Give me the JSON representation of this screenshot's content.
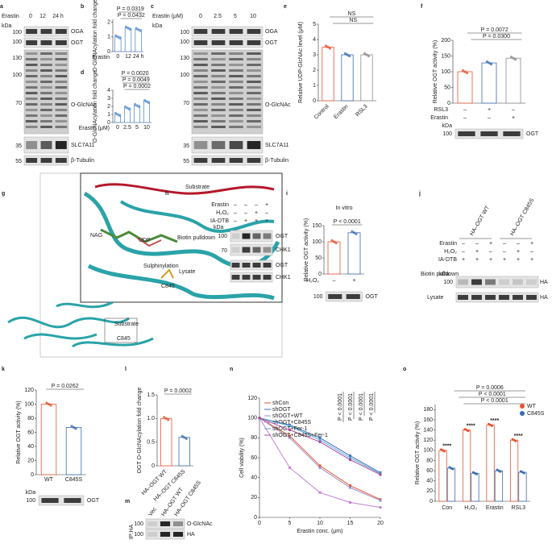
{
  "a": {
    "letter": "a",
    "treatment": "Erastin",
    "lanes": [
      "0",
      "12",
      "24 h"
    ],
    "kda": "kDa",
    "mw": [
      "100",
      "100",
      "130",
      "100",
      "70",
      "35",
      "55"
    ],
    "proteins": [
      "OGA",
      "OGT",
      "O-GlcNAc",
      "SLC7A11",
      "β-Tubulin"
    ]
  },
  "b": {
    "letter": "b",
    "type": "bar",
    "ylabel": "O-GlcNAcylation fold change",
    "xlabel": "Erastin",
    "categories": [
      "0",
      "12",
      "24 h"
    ],
    "values": [
      1,
      1.6,
      1.5
    ],
    "colors": [
      "#5b8fd6",
      "#5b8fd6",
      "#5b8fd6"
    ],
    "ylim": [
      0,
      2.2
    ],
    "yticks": [
      0,
      1,
      2
    ],
    "annotations": [
      "P = 0.0319",
      "P = 0.0432"
    ]
  },
  "c": {
    "letter": "c",
    "treatment": "Erastin (μM)",
    "lanes": [
      "0",
      "2.5",
      "5",
      "10"
    ],
    "kda": "kDa",
    "mw": [
      "100",
      "100",
      "130",
      "100",
      "70",
      "35",
      "55"
    ],
    "proteins": [
      "OGA",
      "OGT",
      "O-GlcNAc",
      "SLC7A11",
      "β-Tubulin"
    ]
  },
  "d": {
    "letter": "d",
    "type": "bar",
    "ylabel": "O-GlcNAcylation fold change",
    "xlabel": "Erastin (μM)",
    "categories": [
      "0",
      "2.5",
      "5",
      "10"
    ],
    "values": [
      1,
      1.8,
      2.1,
      2.6
    ],
    "colors": [
      "#5b8fd6",
      "#5b8fd6",
      "#5b8fd6",
      "#5b8fd6"
    ],
    "ylim": [
      0,
      4
    ],
    "yticks": [
      0,
      1,
      2,
      3,
      4
    ],
    "annotations": [
      "P = 0.0020",
      "P = 0.0049",
      "P = 0.0002"
    ]
  },
  "e": {
    "letter": "e",
    "type": "bar",
    "ylabel": "Relative UDP-GlcNAc level (μM)",
    "categories": [
      "Control",
      "Erastin",
      "RSL3"
    ],
    "values": [
      3.5,
      3.0,
      3.0
    ],
    "colors": [
      "#e8532f",
      "#3a6cb5",
      "#8c8c8c"
    ],
    "ylim": [
      0,
      5
    ],
    "yticks": [
      0,
      1,
      2,
      3,
      4,
      5
    ],
    "annotations": [
      "NS",
      "NS"
    ]
  },
  "f": {
    "letter": "f",
    "type": "bar",
    "ylabel": "Relative OGT activity (%)",
    "values": [
      100,
      128,
      143
    ],
    "colors": [
      "#e8532f",
      "#3a6cb5",
      "#8c8c8c"
    ],
    "ylim": [
      0,
      200
    ],
    "yticks": [
      0,
      50,
      100,
      150,
      200
    ],
    "annotations": [
      "P = 0.0072",
      "P = 0.0300"
    ],
    "rows": [
      {
        "name": "RSL3",
        "signs": [
          "–",
          "+",
          "–"
        ]
      },
      {
        "name": "Erastin",
        "signs": [
          "–",
          "–",
          "+"
        ]
      }
    ],
    "blot": {
      "kda": "kDa",
      "mw": "100",
      "protein": "OGT"
    }
  },
  "g": {
    "letter": "g",
    "labels": [
      "Substrate",
      "NAG",
      "UDP",
      "Sulphinylation",
      "C845"
    ]
  },
  "h": {
    "letter": "h",
    "rows": [
      {
        "name": "Erastin",
        "signs": [
          "–",
          "–",
          "–",
          "+"
        ]
      },
      {
        "name": "H₂O₂",
        "signs": [
          "–",
          "–",
          "+",
          "–"
        ]
      },
      {
        "name": "IA-DTB",
        "signs": [
          "–",
          "+",
          "+",
          "+"
        ]
      }
    ],
    "kda": "kDa",
    "mw": [
      "100",
      "70"
    ],
    "pulldown": "Biotin pulldown",
    "lysate": "Lysate",
    "proteins": [
      "OGT",
      "CHK1",
      "OGT",
      "CHK1"
    ]
  },
  "i": {
    "letter": "i",
    "type": "bar",
    "title": "In vitro",
    "ylabel": "Relative OGT activity (%)",
    "values": [
      100,
      128
    ],
    "colors": [
      "#e8532f",
      "#3a6cb5"
    ],
    "ylim": [
      0,
      150
    ],
    "yticks": [
      0,
      50,
      100,
      150
    ],
    "annotations": [
      "P < 0.0001"
    ],
    "rows": [
      {
        "name": "H₂O₂",
        "signs": [
          "–",
          "+"
        ]
      }
    ],
    "blot": {
      "mw": "100",
      "protein": "OGT"
    }
  },
  "j": {
    "letter": "j",
    "groups": [
      "HA–OGT WT",
      "HA–OGT C845S"
    ],
    "rows": [
      {
        "name": "Erastin",
        "signs": [
          "–",
          "–",
          "+",
          "–",
          "–",
          "+"
        ]
      },
      {
        "name": "H₂O₂",
        "signs": [
          "–",
          "+",
          "–",
          "–",
          "+",
          "–"
        ]
      },
      {
        "name": "IA-DTB",
        "signs": [
          "+",
          "+",
          "+",
          "+",
          "+",
          "+"
        ]
      }
    ],
    "kda": "kDa",
    "mw": "100",
    "pulldown": "Biotin pulldown",
    "lysate": "Lysate",
    "proteins": [
      "HA",
      "HA"
    ]
  },
  "k": {
    "letter": "k",
    "type": "bar",
    "ylabel": "Relative OGT activity (%)",
    "categories": [
      "WT",
      "C845S"
    ],
    "values": [
      100,
      67
    ],
    "colors": [
      "#e8532f",
      "#3a6cb5"
    ],
    "ylim": [
      0,
      120
    ],
    "yticks": [
      0,
      20,
      40,
      60,
      80,
      100,
      120
    ],
    "annotations": [
      "P = 0.0262"
    ],
    "blot": {
      "kda": "kDa",
      "mw": "100",
      "protein": "OGT"
    }
  },
  "l": {
    "letter": "l",
    "type": "bar",
    "ylabel": "OGT O-GlcNAcylation fold change",
    "categories": [
      "HA–OGT WT",
      "HA–OGT C845S"
    ],
    "values": [
      1.0,
      0.6
    ],
    "colors": [
      "#e8532f",
      "#3a6cb5"
    ],
    "ylim": [
      0,
      1.5
    ],
    "yticks": [
      0,
      0.5,
      {
        "value": 1,
        "label": "1.0"
      },
      1.5
    ],
    "annotations": [
      "P = 0.0002"
    ]
  },
  "m": {
    "letter": "m",
    "lanes": [
      "Vec",
      "HA–OGT WT",
      "HA–OGT C845S"
    ],
    "ip": "IP:HA",
    "mw": [
      "100",
      "100"
    ],
    "proteins": [
      "O-GlcNAc",
      "HA"
    ]
  },
  "n": {
    "letter": "n",
    "type": "line",
    "ylabel": "Cell viability (%)",
    "xlabel": "Erastin conc. (μm)",
    "x": [
      0,
      5,
      10,
      15,
      20
    ],
    "xlim": [
      0,
      20
    ],
    "xticks": [
      0,
      5,
      10,
      15,
      20
    ],
    "ylim": [
      0,
      120
    ],
    "yticks": [
      0,
      20,
      40,
      60,
      80,
      100,
      120
    ],
    "annotations": [
      "P < 0.0001",
      "P < 0.0001",
      "P < 0.0001",
      "P < 0.0001"
    ],
    "series": [
      {
        "name": "shCon",
        "color": "#e8532f",
        "values": [
          100,
          82,
          52,
          32,
          18
        ]
      },
      {
        "name": "shOGT",
        "color": "#3a6cb5",
        "values": [
          100,
          93,
          80,
          62,
          45
        ]
      },
      {
        "name": "shOGT+WT",
        "color": "#9a8fc9",
        "values": [
          100,
          80,
          50,
          30,
          17
        ]
      },
      {
        "name": "shOGT+C845S",
        "color": "#c77fd6",
        "values": [
          100,
          50,
          25,
          15,
          10
        ]
      },
      {
        "name": "shOGT+Fer-1",
        "color": "#5aa6d6",
        "values": [
          100,
          92,
          78,
          60,
          44
        ]
      },
      {
        "name": "shOGT+C845S+Fer-1",
        "color": "#a8479b",
        "values": [
          100,
          88,
          76,
          58,
          43
        ]
      }
    ]
  },
  "o": {
    "letter": "o",
    "type": "grouped",
    "ylabel": "Relative OGT activity (%)",
    "categories": [
      "Con",
      "H₂O₂",
      "Erastin",
      "RSL3"
    ],
    "ylim": [
      0,
      190
    ],
    "yticks": [
      0,
      20,
      40,
      60,
      80,
      100,
      120,
      140,
      160,
      180
    ],
    "annotations": [
      "P = 0.0006",
      "P < 0.0001",
      "P < 0.0001"
    ],
    "stars": [
      "****",
      "****",
      "****",
      "****"
    ],
    "series": [
      {
        "name": "WT",
        "color": "#e8532f",
        "values": [
          100,
          140,
          150,
          120
        ]
      },
      {
        "name": "C845S",
        "color": "#3a6cb5",
        "values": [
          65,
          55,
          60,
          57
        ]
      }
    ],
    "blot": {
      "kda": "kDa",
      "mw": "100",
      "protein": "HA"
    }
  }
}
